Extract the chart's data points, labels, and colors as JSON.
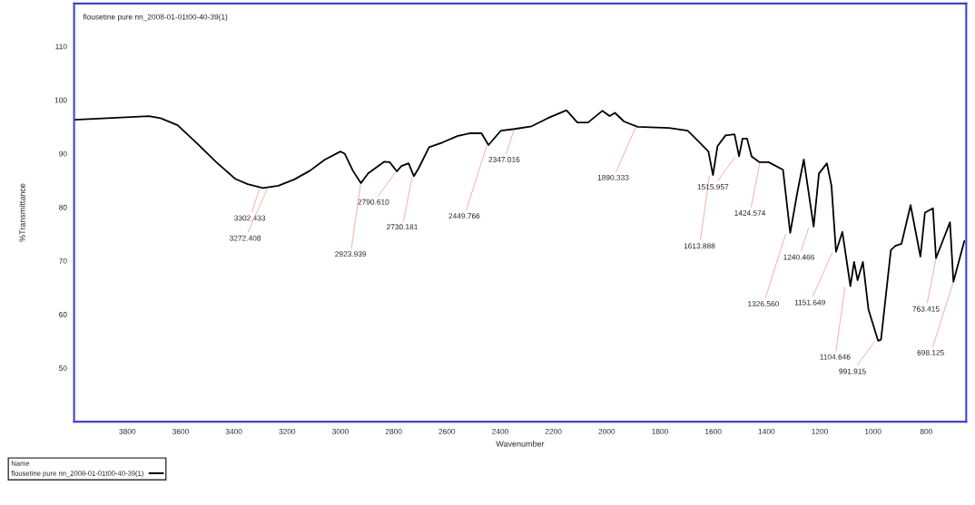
{
  "chart_data": {
    "type": "line",
    "title": "flousetine pure nn_2008-01-01t00-40-39(1)",
    "xlabel": "Wavenumber",
    "ylabel": "%Transmittance",
    "legend_title": "Name",
    "xlim": [
      4000,
      650
    ],
    "ylim": [
      40,
      118
    ],
    "xticks": [
      3800,
      3600,
      3400,
      3200,
      3000,
      2800,
      2600,
      2400,
      2200,
      2000,
      1800,
      1600,
      1400,
      1200,
      1000,
      800
    ],
    "yticks": [
      50,
      60,
      70,
      80,
      90,
      100,
      110
    ],
    "grid": false,
    "legend": "bottom left",
    "series": [
      {
        "name": "flousetine pure nn_2008-01-01t00-40-39(1)",
        "color": "#000000",
        "x": [
          4000,
          3719,
          3675,
          3611,
          3534,
          3466,
          3395,
          3348,
          3291,
          3233,
          3173,
          3115,
          3058,
          3000,
          2984,
          2953,
          2923,
          2896,
          2835,
          2815,
          2788,
          2771,
          2744,
          2724,
          2707,
          2667,
          2616,
          2559,
          2512,
          2470,
          2444,
          2397,
          2346,
          2282,
          2222,
          2151,
          2110,
          2070,
          2016,
          1989,
          1969,
          1935,
          1884,
          1766,
          1696,
          1648,
          1618,
          1601,
          1584,
          1554,
          1520,
          1503,
          1490,
          1473,
          1456,
          1426,
          1392,
          1338,
          1311,
          1284,
          1260,
          1223,
          1203,
          1173,
          1156,
          1139,
          1115,
          1085,
          1071,
          1058,
          1038,
          1017,
          981,
          970,
          933,
          916,
          893,
          859,
          822,
          805,
          775,
          763.415,
          711,
          698.125,
          657
        ],
        "values": [
          96.3,
          97.0,
          96.6,
          95.3,
          91.7,
          88.4,
          85.3,
          84.3,
          83.6,
          84.0,
          85.2,
          86.8,
          88.9,
          90.4,
          90.0,
          86.8,
          84.5,
          86.3,
          88.5,
          88.4,
          86.7,
          87.7,
          88.2,
          85.8,
          87.2,
          91.2,
          92.1,
          93.3,
          93.8,
          93.8,
          91.6,
          94.3,
          94.6,
          95.1,
          96.6,
          98.1,
          95.8,
          95.8,
          98.0,
          97.0,
          97.6,
          96.0,
          95.0,
          94.8,
          94.3,
          91.9,
          90.4,
          86.0,
          91.4,
          93.4,
          93.6,
          89.5,
          92.8,
          92.8,
          89.5,
          88.4,
          88.4,
          87.0,
          75.2,
          82.8,
          88.9,
          76.4,
          86.3,
          88.2,
          84.0,
          71.7,
          75.4,
          65.3,
          69.8,
          66.4,
          69.8,
          60.9,
          55.1,
          55.3,
          72.0,
          72.8,
          73.2,
          80.4,
          70.8,
          79.0,
          79.8,
          70.5,
          77.2,
          66.1,
          73.7
        ]
      }
    ],
    "annotations": [
      {
        "text": "3302.433",
        "x": 3302.433,
        "y": 83.7
      },
      {
        "text": "3272.408",
        "x": 3272.408,
        "y": 83.7
      },
      {
        "text": "2923.939",
        "x": 2923.939,
        "y": 84.5
      },
      {
        "text": "2790.610",
        "x": 2790.61,
        "y": 86.7
      },
      {
        "text": "2730.181",
        "x": 2730.181,
        "y": 85.8
      },
      {
        "text": "2449.766",
        "x": 2449.766,
        "y": 91.6
      },
      {
        "text": "2347.016",
        "x": 2347.016,
        "y": 94.6
      },
      {
        "text": "1890.333",
        "x": 1890.333,
        "y": 95.0
      },
      {
        "text": "1613.888",
        "x": 1613.888,
        "y": 86.0
      },
      {
        "text": "1515.957",
        "x": 1515.957,
        "y": 89.5
      },
      {
        "text": "1424.574",
        "x": 1424.574,
        "y": 88.4
      },
      {
        "text": "1326.560",
        "x": 1326.56,
        "y": 75.2
      },
      {
        "text": "1240.466",
        "x": 1240.466,
        "y": 76.4
      },
      {
        "text": "1151.649",
        "x": 1151.649,
        "y": 71.7
      },
      {
        "text": "1104.646",
        "x": 1104.646,
        "y": 65.3
      },
      {
        "text": "991.915",
        "x": 991.915,
        "y": 55.1
      },
      {
        "text": "763.415",
        "x": 763.415,
        "y": 70.5
      },
      {
        "text": "698.125",
        "x": 698.125,
        "y": 66.1
      }
    ]
  }
}
